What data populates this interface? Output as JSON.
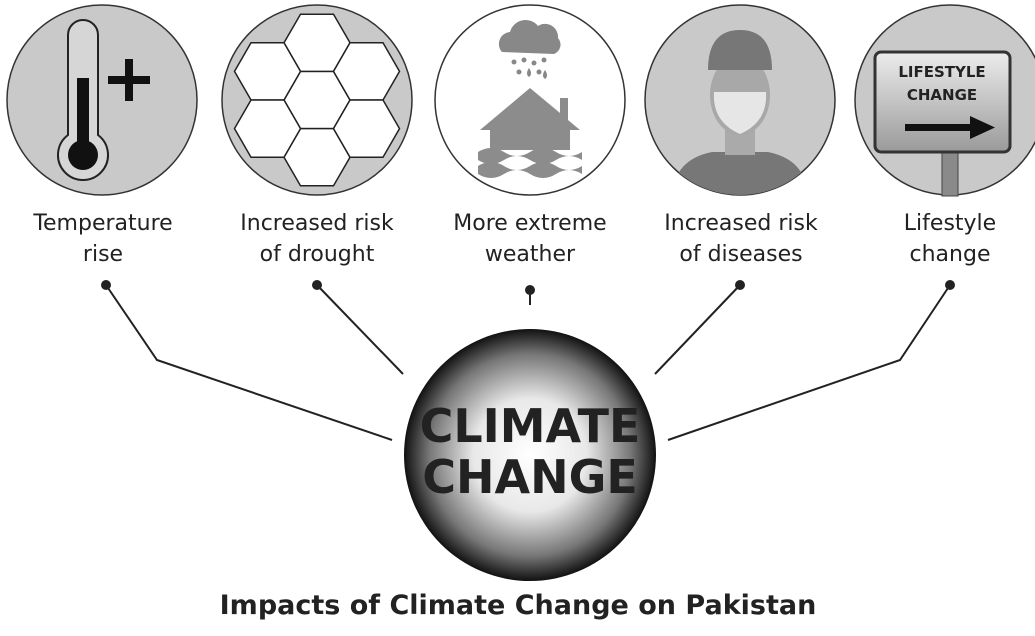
{
  "title": "Impacts of Climate Change on Pakistan",
  "center": {
    "lines": [
      "CLIMATE",
      "CHANGE"
    ]
  },
  "nodes": [
    {
      "label_lines": [
        "Temperature",
        "rise"
      ]
    },
    {
      "label_lines": [
        "Increased risk",
        "of drought"
      ]
    },
    {
      "label_lines": [
        "More extreme",
        "weather"
      ]
    },
    {
      "label_lines": [
        "Increased risk",
        "of diseases"
      ]
    },
    {
      "label_lines": [
        "Lifestyle",
        "change"
      ],
      "sign_lines": [
        "LIFESTYLE",
        "CHANGE"
      ]
    }
  ]
}
